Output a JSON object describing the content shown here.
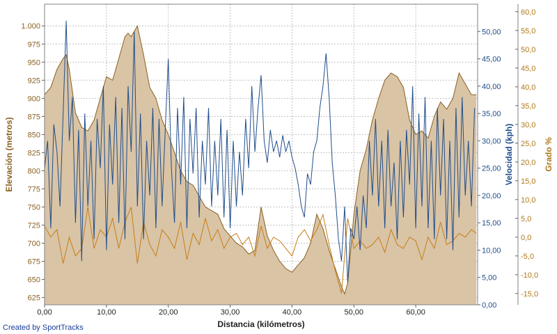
{
  "chart_data": {
    "type": "line",
    "xlabel": "Distancia (kilómetros)",
    "xlim": [
      0,
      70
    ],
    "xticks": [
      "0,00",
      "10,00",
      "20,00",
      "30,00",
      "40,00",
      "50,00",
      "60,00"
    ],
    "y_left": {
      "label": "Elevación (metros)",
      "lim": [
        615,
        1030
      ],
      "ticks": [
        "625",
        "650",
        "675",
        "700",
        "725",
        "750",
        "775",
        "800",
        "825",
        "850",
        "875",
        "900",
        "925",
        "950",
        "975",
        "1.000"
      ]
    },
    "y_right1": {
      "label": "Velocidad (kph)",
      "lim": [
        0,
        55
      ],
      "ticks": [
        "0,00",
        "5,00",
        "10,00",
        "15,00",
        "20,00",
        "25,00",
        "30,00",
        "35,00",
        "40,00",
        "45,00",
        "50,00"
      ]
    },
    "y_right2": {
      "label": "Grado %",
      "lim": [
        -18,
        62
      ],
      "ticks": [
        "-15,0",
        "-10,0",
        "-5,0",
        "0,0",
        "5,0",
        "10,0",
        "15,0",
        "20,0",
        "25,0",
        "30,0",
        "35,0",
        "40,0",
        "45,0",
        "50,0",
        "55,0",
        "60,0"
      ]
    },
    "grid": true,
    "colors": {
      "elevation_fill": "#d9c4a6",
      "elevation_line": "#8a6020",
      "speed_line": "#1f4d8a",
      "grade_line": "#c87d14",
      "grid": "#c0c0c0",
      "axis_text_left": "#8a6020",
      "axis_text_speed": "#1f4d8a",
      "axis_text_grade": "#b07818"
    },
    "series": [
      {
        "axis": "elevation",
        "x": [
          0,
          1,
          2,
          3,
          3.5,
          4,
          5,
          6,
          7,
          8,
          9,
          10,
          11,
          12,
          13,
          13.5,
          14,
          15,
          16,
          17,
          18,
          19,
          20,
          21,
          22,
          23,
          24,
          25,
          26,
          27,
          28,
          29,
          30,
          31,
          32,
          33,
          34,
          35,
          36,
          37,
          38,
          39,
          40,
          41,
          42,
          43,
          44,
          45,
          46,
          47,
          48,
          48.5,
          49,
          50,
          51,
          52,
          53,
          54,
          55,
          56,
          57,
          58,
          59,
          60,
          61,
          62,
          63,
          64,
          65,
          66,
          67,
          68,
          69,
          69.8
        ],
        "values": [
          905,
          915,
          940,
          955,
          960,
          940,
          880,
          860,
          855,
          870,
          900,
          930,
          925,
          955,
          985,
          990,
          985,
          1000,
          960,
          915,
          900,
          870,
          850,
          825,
          800,
          785,
          780,
          765,
          750,
          745,
          740,
          720,
          710,
          700,
          695,
          685,
          690,
          750,
          710,
          690,
          675,
          665,
          660,
          670,
          680,
          700,
          740,
          720,
          690,
          665,
          640,
          630,
          645,
          740,
          800,
          830,
          870,
          900,
          925,
          935,
          930,
          915,
          870,
          850,
          855,
          845,
          875,
          895,
          885,
          900,
          935,
          920,
          905,
          905
        ]
      },
      {
        "axis": "speed",
        "x": [
          0,
          0.5,
          1,
          1.5,
          2,
          2.5,
          3,
          3.5,
          4,
          4.5,
          5,
          5.5,
          6,
          6.5,
          7,
          7.5,
          8,
          8.5,
          9,
          9.5,
          10,
          10.5,
          11,
          11.5,
          12,
          12.5,
          13,
          13.5,
          14,
          14.5,
          15,
          15.5,
          16,
          16.5,
          17,
          17.5,
          18,
          18.5,
          19,
          19.5,
          20,
          20.5,
          21,
          21.5,
          22,
          22.5,
          23,
          23.5,
          24,
          24.5,
          25,
          25.5,
          26,
          26.5,
          27,
          27.5,
          28,
          28.5,
          29,
          29.5,
          30,
          30.5,
          31,
          31.5,
          32,
          32.5,
          33,
          33.5,
          34,
          34.5,
          35,
          35.5,
          36,
          36.5,
          37,
          37.5,
          38,
          38.5,
          39,
          39.5,
          40,
          40.5,
          41,
          41.5,
          42,
          42.5,
          43,
          43.5,
          44,
          44.5,
          45,
          45.5,
          46,
          46.5,
          47,
          47.5,
          48,
          48.5,
          49,
          49.5,
          50,
          50.5,
          51,
          51.5,
          52,
          52.5,
          53,
          53.5,
          54,
          54.5,
          55,
          55.5,
          56,
          56.5,
          57,
          57.5,
          58,
          58.5,
          59,
          59.5,
          60,
          60.5,
          61,
          61.5,
          62,
          62.5,
          63,
          63.5,
          64,
          64.5,
          65,
          65.5,
          66,
          66.5,
          67,
          67.5,
          68,
          68.5,
          69,
          69.5
        ],
        "values": [
          25,
          30,
          14,
          33,
          28,
          18,
          35,
          52,
          30,
          38,
          15,
          32,
          8,
          35,
          18,
          30,
          12,
          34,
          25,
          40,
          10,
          33,
          22,
          38,
          15,
          36,
          12,
          40,
          28,
          50,
          18,
          35,
          12,
          30,
          20,
          36,
          14,
          34,
          18,
          32,
          45,
          25,
          15,
          36,
          22,
          38,
          14,
          34,
          24,
          36,
          16,
          30,
          22,
          36,
          18,
          30,
          20,
          34,
          16,
          32,
          14,
          30,
          18,
          28,
          20,
          34,
          25,
          40,
          28,
          36,
          42,
          30,
          26,
          32,
          28,
          30,
          27,
          31,
          28,
          30,
          27,
          25,
          22,
          18,
          16,
          24,
          22,
          28,
          30,
          36,
          40,
          46,
          38,
          26,
          20,
          12,
          8,
          18,
          4,
          14,
          12,
          18,
          10,
          20,
          14,
          30,
          20,
          34,
          18,
          30,
          14,
          32,
          18,
          26,
          12,
          30,
          16,
          32,
          22,
          40,
          14,
          35,
          18,
          38,
          14,
          30,
          12,
          36,
          20,
          34,
          12,
          30,
          10,
          36,
          16,
          38,
          20,
          30,
          18,
          36
        ]
      },
      {
        "axis": "grade",
        "x": [
          0,
          1,
          2,
          3,
          4,
          5,
          6,
          7,
          8,
          9,
          10,
          11,
          12,
          13,
          14,
          15,
          16,
          17,
          18,
          19,
          20,
          21,
          22,
          23,
          24,
          25,
          26,
          27,
          28,
          29,
          30,
          31,
          32,
          33,
          34,
          35,
          36,
          37,
          38,
          39,
          40,
          41,
          42,
          43,
          44,
          45,
          46,
          47,
          48,
          49,
          50,
          51,
          52,
          53,
          54,
          55,
          56,
          57,
          58,
          59,
          60,
          61,
          62,
          63,
          64,
          65,
          66,
          67,
          68,
          69,
          69.8
        ],
        "values": [
          3,
          0,
          2,
          -7,
          0,
          -5,
          -3,
          8,
          -3,
          2,
          0,
          5,
          -3,
          4,
          8,
          -7,
          4,
          -2,
          -5,
          2,
          0,
          -3,
          4,
          -6,
          1,
          -2,
          5,
          -1,
          2,
          -3,
          0,
          1,
          -2,
          0,
          -5,
          3,
          -3,
          0,
          -1,
          -3,
          -5,
          0,
          2,
          -1,
          2,
          6,
          -2,
          -9,
          -15,
          5,
          -3,
          -1,
          -3,
          -2,
          0,
          -4,
          2,
          -2,
          -3,
          0,
          -1,
          -6,
          0,
          -3,
          4,
          -2,
          -1,
          1,
          0,
          2,
          1
        ]
      }
    ]
  },
  "credit": "Created by SportTracks"
}
